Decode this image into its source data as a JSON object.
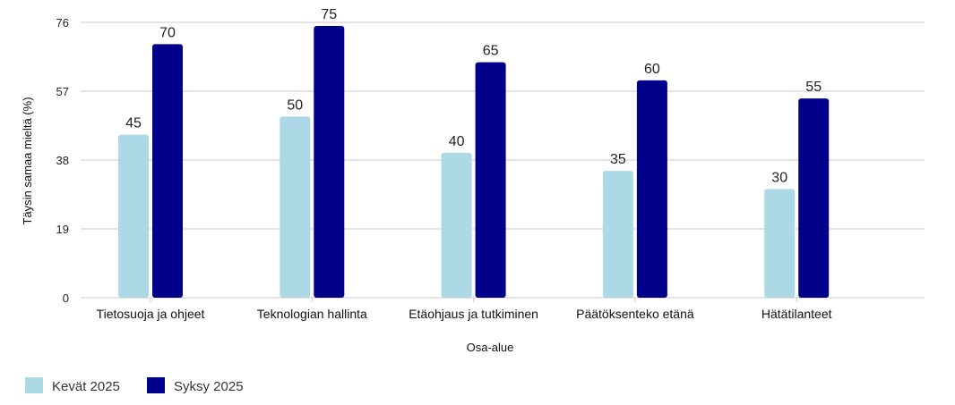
{
  "chart_data": {
    "type": "bar",
    "title": "",
    "xlabel": "Osa-alue",
    "ylabel": "Täysin samaa mieltä (%)",
    "ylim": [
      0,
      76
    ],
    "yticks": [
      0,
      19,
      38,
      57,
      76
    ],
    "grid": true,
    "legend_position": "bottom-left",
    "categories": [
      "Tietosuoja ja ohjeet",
      "Teknologian hallinta",
      "Etäohjaus ja tutkiminen",
      "Päätöksenteko etänä",
      "Hätätilanteet"
    ],
    "series": [
      {
        "name": "Kevät 2025",
        "color": "#add8e6",
        "values": [
          45,
          50,
          40,
          35,
          30
        ]
      },
      {
        "name": "Syksy 2025",
        "color": "#00008b",
        "values": [
          70,
          75,
          65,
          60,
          55
        ]
      }
    ]
  }
}
